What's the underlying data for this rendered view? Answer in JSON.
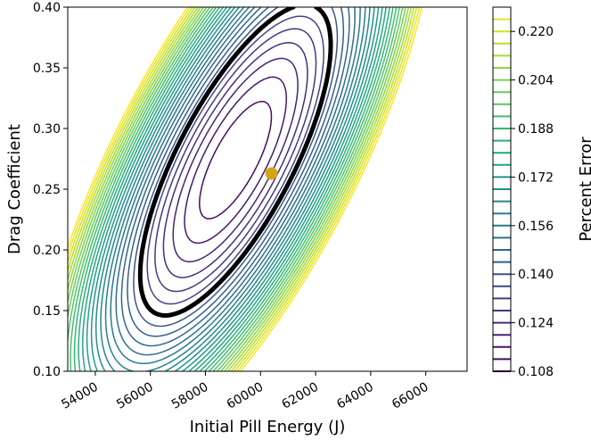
{
  "chart_data": {
    "type": "contour",
    "xlabel": "Initial Pill Energy (J)",
    "ylabel": "Drag Coefficient",
    "colorbar_label": "Percent Error",
    "xlim": [
      53000,
      67500
    ],
    "ylim": [
      0.1,
      0.4
    ],
    "x_ticks": [
      54000,
      56000,
      58000,
      60000,
      62000,
      64000,
      66000
    ],
    "x_tick_labels": [
      "54000",
      "56000",
      "58000",
      "60000",
      "62000",
      "64000",
      "66000"
    ],
    "y_ticks": [
      0.1,
      0.15,
      0.2,
      0.25,
      0.3,
      0.35,
      0.4
    ],
    "y_tick_labels": [
      "0.10",
      "0.15",
      "0.20",
      "0.25",
      "0.30",
      "0.35",
      "0.40"
    ],
    "colorbar_ticks": [
      0.108,
      0.124,
      0.14,
      0.156,
      0.172,
      0.188,
      0.204,
      0.22
    ],
    "colorbar_tick_labels": [
      "0.108",
      "0.124",
      "0.140",
      "0.156",
      "0.172",
      "0.188",
      "0.204",
      "0.220"
    ],
    "colorbar_range": [
      0.108,
      0.228
    ],
    "contour_levels": {
      "start": 0.108,
      "step": 0.004,
      "count": 31
    },
    "colormap": "viridis",
    "minimum_point": {
      "x": 60400,
      "y": 0.263,
      "color": "#d4a514"
    },
    "highlighted_contour": {
      "color": "#000000",
      "description": "bold black threshold contour"
    }
  }
}
